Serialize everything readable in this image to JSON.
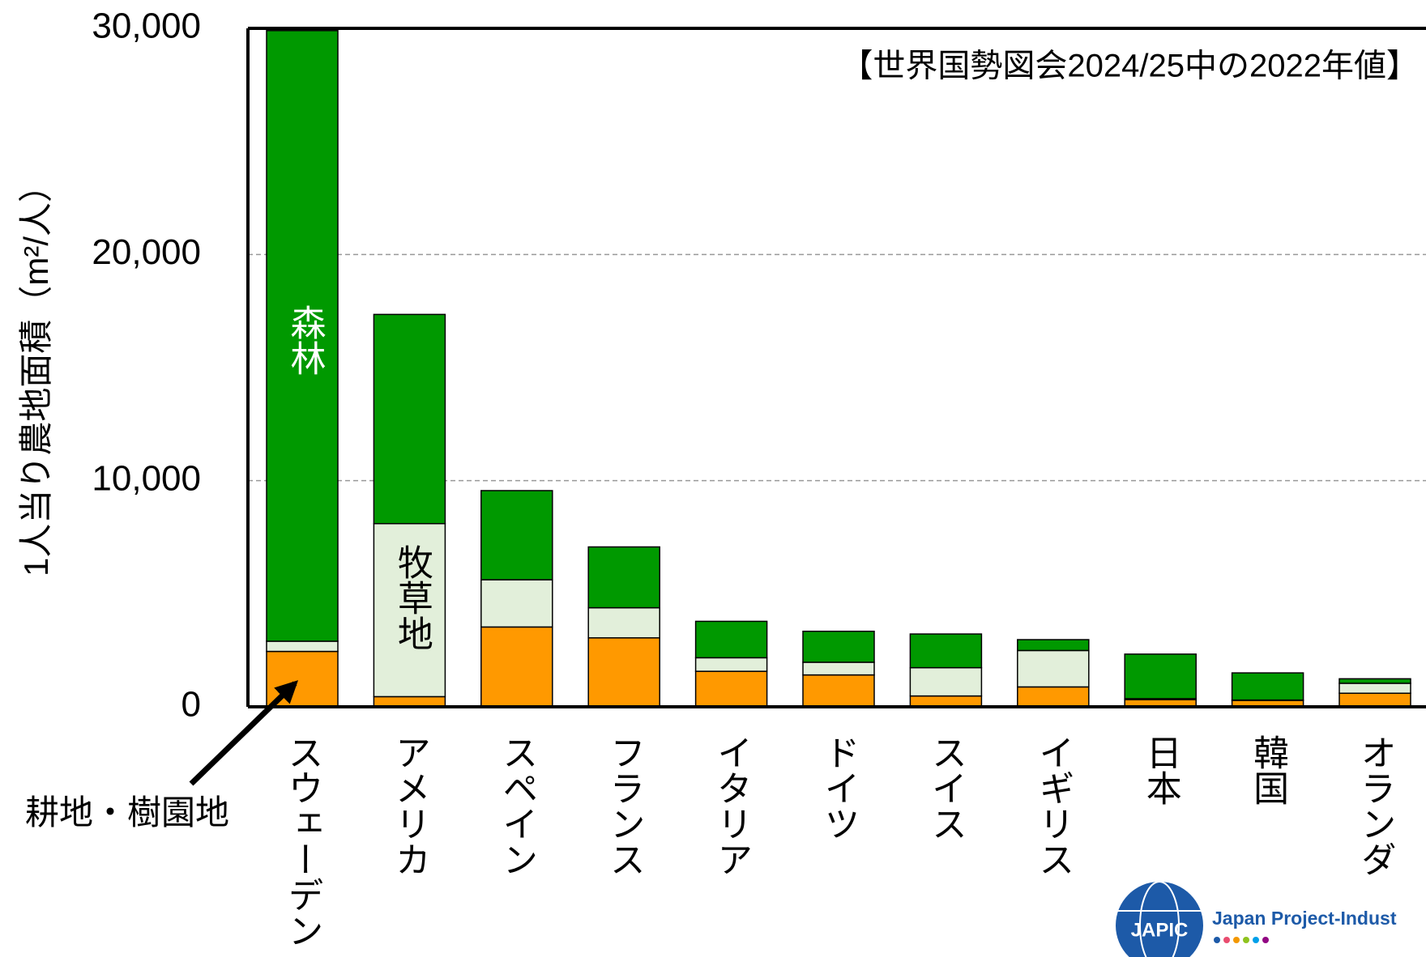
{
  "chart_data": {
    "type": "stacked_bar",
    "y_label": "1人当り農地面積（m²/人）",
    "annotation": "【世界国勢図会2024/25中の2022年値】",
    "categories": [
      "スウェーデン",
      "アメリカ",
      "スペイン",
      "フランス",
      "イタリア",
      "ドイツ",
      "スイス",
      "イギリス",
      "日本",
      "韓国",
      "オランダ"
    ],
    "series": [
      {
        "name": "耕地・樹園地",
        "color": "#ff9900",
        "values": [
          2450,
          450,
          3530,
          3050,
          1570,
          1410,
          480,
          880,
          320,
          280,
          600
        ]
      },
      {
        "name": "牧草地",
        "color": "#e2efda",
        "values": [
          450,
          7650,
          2090,
          1330,
          600,
          560,
          1250,
          1610,
          40,
          20,
          440
        ]
      },
      {
        "name": "森林",
        "color": "#009900",
        "values": [
          27000,
          9250,
          3940,
          2690,
          1610,
          1370,
          1490,
          480,
          1970,
          1200,
          200
        ]
      }
    ],
    "ylim": [
      0,
      30000
    ],
    "yticks": [
      {
        "value": 0,
        "label": "0"
      },
      {
        "value": 10000,
        "label": "10,000"
      },
      {
        "value": 20000,
        "label": "20,000"
      },
      {
        "value": 30000,
        "label": "30,000"
      }
    ],
    "grid": true,
    "logo": {
      "mark": "JAPIC",
      "text": "Japan Project-Indust"
    }
  }
}
